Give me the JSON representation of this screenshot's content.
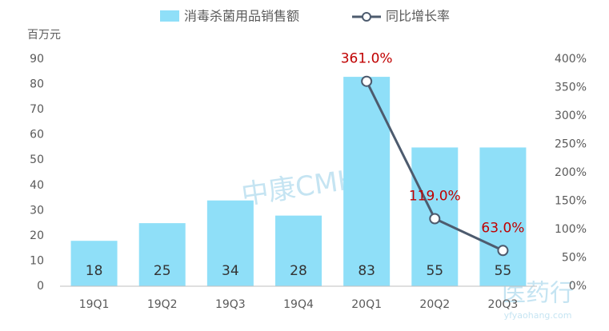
{
  "chart_data": {
    "type": "bar_line",
    "y_axis_label": "百万元",
    "categories": [
      "19Q1",
      "19Q2",
      "19Q3",
      "19Q4",
      "20Q1",
      "20Q2",
      "20Q3"
    ],
    "series": [
      {
        "name": "消毒杀菌用品销售额",
        "type": "bar",
        "color": "#8fdff8",
        "values": [
          18,
          25,
          34,
          28,
          83,
          55,
          55
        ]
      },
      {
        "name": "同比增长率",
        "type": "line",
        "axis": "y2",
        "color": "#4d5b6e",
        "values": [
          null,
          null,
          null,
          null,
          361,
          119,
          63
        ],
        "value_labels": [
          null,
          null,
          null,
          null,
          "361.0%",
          "119.0%",
          "63.0%"
        ],
        "label_color": "#c00000"
      }
    ],
    "ylim": [
      0,
      90
    ],
    "yticks": [
      0,
      10,
      20,
      30,
      40,
      50,
      60,
      70,
      80,
      90
    ],
    "y2lim": [
      0,
      400
    ],
    "y2ticks": [
      {
        "value": 0,
        "label": "0%"
      },
      {
        "value": 50,
        "label": "50%"
      },
      {
        "value": 100,
        "label": "100%"
      },
      {
        "value": 150,
        "label": "150%"
      },
      {
        "value": 200,
        "label": "200%"
      },
      {
        "value": 250,
        "label": "250%"
      },
      {
        "value": 300,
        "label": "300%"
      },
      {
        "value": 350,
        "label": "350%"
      },
      {
        "value": 400,
        "label": "400%"
      }
    ],
    "legend": "top",
    "watermarks": [
      "中康CMH",
      "医药行",
      "yfyaohang.com"
    ]
  }
}
